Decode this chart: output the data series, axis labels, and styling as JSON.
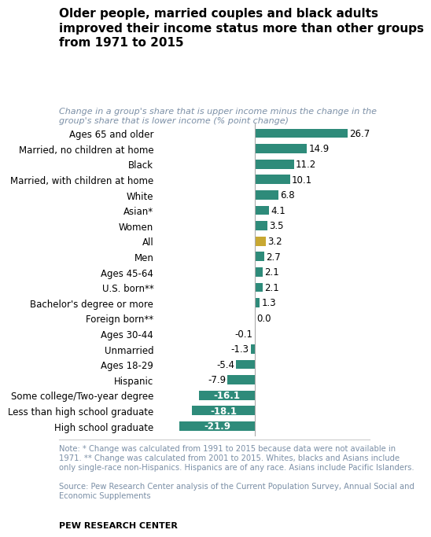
{
  "title": "Older people, married couples and black adults\nimproved their income status more than other groups\nfrom 1971 to 2015",
  "subtitle": "Change in a group's share that is upper income minus the change in the\ngroup's share that is lower income (% point change)",
  "categories": [
    "Ages 65 and older",
    "Married, no children at home",
    "Black",
    "Married, with children at home",
    "White",
    "Asian*",
    "Women",
    "All",
    "Men",
    "Ages 45-64",
    "U.S. born**",
    "Bachelor's degree or more",
    "Foreign born**",
    "Ages 30-44",
    "Unmarried",
    "Ages 18-29",
    "Hispanic",
    "Some college/Two-year degree",
    "Less than high school graduate",
    "High school graduate"
  ],
  "values": [
    26.7,
    14.9,
    11.2,
    10.1,
    6.8,
    4.1,
    3.5,
    3.2,
    2.7,
    2.1,
    2.1,
    1.3,
    0.0,
    -0.1,
    -1.3,
    -5.4,
    -7.9,
    -16.1,
    -18.1,
    -21.9
  ],
  "bar_colors": [
    "#2e8b7a",
    "#2e8b7a",
    "#2e8b7a",
    "#2e8b7a",
    "#2e8b7a",
    "#2e8b7a",
    "#2e8b7a",
    "#c8a832",
    "#2e8b7a",
    "#2e8b7a",
    "#2e8b7a",
    "#2e8b7a",
    "#2e8b7a",
    "#2e8b7a",
    "#2e8b7a",
    "#2e8b7a",
    "#2e8b7a",
    "#2e8b7a",
    "#2e8b7a",
    "#2e8b7a"
  ],
  "note": "Note: * Change was calculated from 1991 to 2015 because data were not available in\n1971. ** Change was calculated from 2001 to 2015. Whites, blacks and Asians include\nonly single-race non-Hispanics. Hispanics are of any race. Asians include Pacific Islanders.",
  "source": "Source: Pew Research Center analysis of the Current Population Survey, Annual Social and\nEconomic Supplements",
  "brand": "PEW RESEARCH CENTER",
  "xlim": [
    -28,
    32
  ],
  "teal_color": "#2e8b7a",
  "gold_color": "#c8a832",
  "title_fontsize": 11.0,
  "subtitle_fontsize": 8.0,
  "label_fontsize": 8.5,
  "value_fontsize": 8.5,
  "note_fontsize": 7.2,
  "note_color": "#7b8fa6",
  "source_color": "#7b8fa6"
}
